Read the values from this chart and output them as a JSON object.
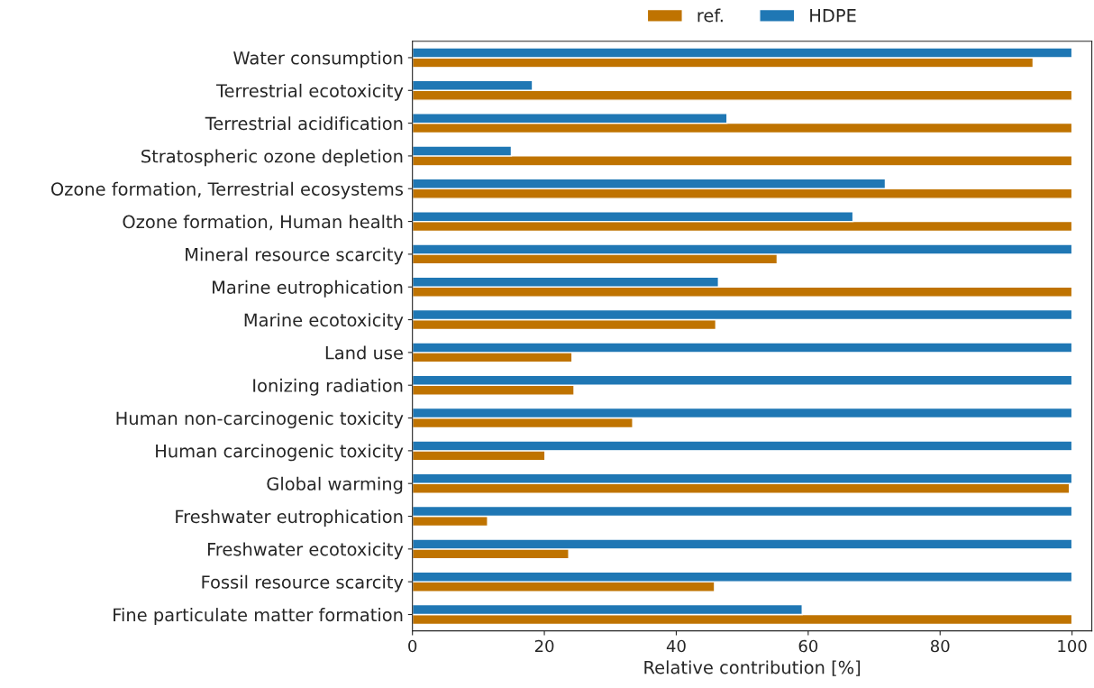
{
  "chart_data": {
    "type": "bar",
    "orientation": "horizontal",
    "xlabel": "Relative contribution [%]",
    "categories": [
      "Water consumption",
      "Terrestrial ecotoxicity",
      "Terrestrial acidification",
      "Stratospheric ozone depletion",
      "Ozone formation, Terrestrial ecosystems",
      "Ozone formation, Human health",
      "Mineral resource scarcity",
      "Marine eutrophication",
      "Marine ecotoxicity",
      "Land use",
      "Ionizing radiation",
      "Human non-carcinogenic toxicity",
      "Human carcinogenic toxicity",
      "Global warming",
      "Freshwater eutrophication",
      "Freshwater ecotoxicity",
      "Fossil resource scarcity",
      "Fine particulate matter formation"
    ],
    "series": [
      {
        "name": "ref.",
        "color": "#bf7300",
        "values": [
          94.1,
          100,
          100,
          100,
          100,
          100,
          55.3,
          100,
          46.0,
          24.2,
          24.5,
          33.4,
          20.1,
          99.6,
          11.4,
          23.7,
          45.8,
          100
        ]
      },
      {
        "name": "HDPE",
        "color": "#1f77b4",
        "values": [
          100,
          18.2,
          47.7,
          15.0,
          71.7,
          66.8,
          100,
          46.4,
          100,
          100,
          100,
          100,
          100,
          100,
          100,
          100,
          100,
          59.1
        ]
      }
    ],
    "xlim": [
      0,
      103
    ],
    "xticks": [
      0,
      20,
      40,
      60,
      80,
      100
    ],
    "grid": false,
    "legend": "top"
  }
}
